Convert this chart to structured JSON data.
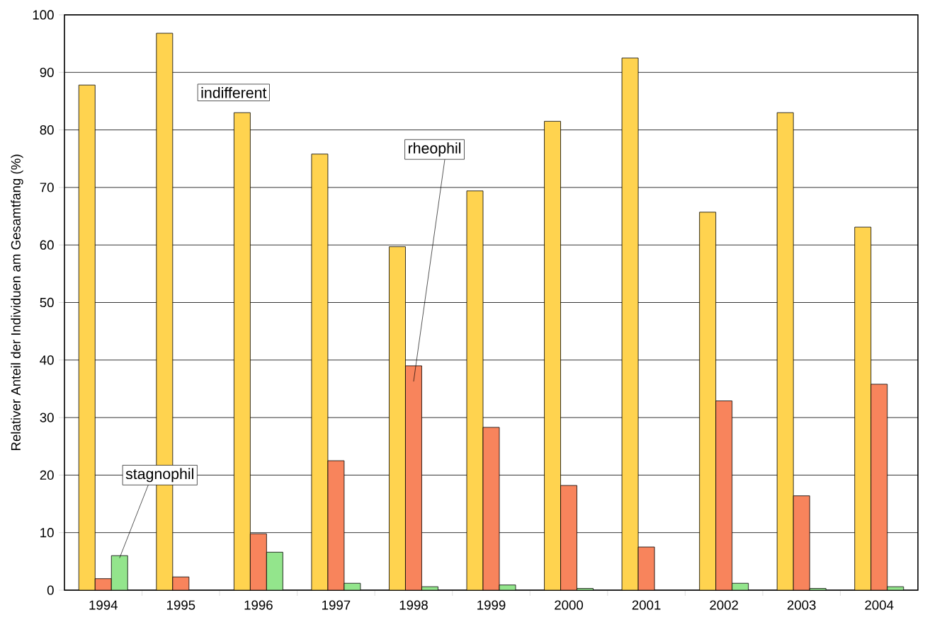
{
  "chart_data": {
    "type": "bar",
    "ylabel": "Relativer Anteil der Individuen am Gesamtfang (%)",
    "categories": [
      "1994",
      "1995",
      "1996",
      "1997",
      "1998",
      "1999",
      "2000",
      "2001",
      "2002",
      "2003",
      "2004"
    ],
    "series": [
      {
        "name": "indifferent",
        "color": "#ffd34f",
        "values": [
          87.8,
          96.8,
          83,
          75.8,
          59.7,
          69.4,
          81.5,
          92.5,
          65.7,
          83,
          63.1
        ]
      },
      {
        "name": "rheophil",
        "color": "#f8845c",
        "values": [
          2,
          2.3,
          9.8,
          22.5,
          39,
          28.3,
          18.2,
          7.5,
          32.9,
          16.4,
          35.8
        ]
      },
      {
        "name": "stagnophil",
        "color": "#93e58c",
        "values": [
          6,
          null,
          6.6,
          1.2,
          0.6,
          0.9,
          0.3,
          null,
          1.2,
          0.3,
          0.6
        ]
      }
    ],
    "ylim": [
      0,
      100
    ],
    "yticks": [
      0,
      10,
      20,
      30,
      40,
      50,
      60,
      70,
      80,
      90,
      100
    ],
    "grid": "y"
  }
}
